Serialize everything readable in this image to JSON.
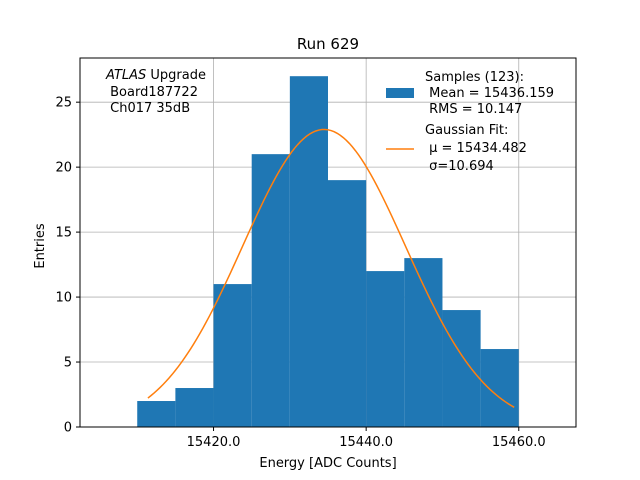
{
  "chart_data": {
    "type": "bar",
    "subtype": "histogram",
    "title": "Run 629",
    "xlabel": "Energy [ADC Counts]",
    "ylabel": "Entries",
    "xlim": [
      15402.5,
      15467.5
    ],
    "ylim": [
      0,
      28.4
    ],
    "xticks": [
      15420.0,
      15440.0,
      15460.0
    ],
    "xtick_labels": [
      "15420.0",
      "15440.0",
      "15460.0"
    ],
    "yticks": [
      0,
      5,
      10,
      15,
      20,
      25
    ],
    "ytick_labels": [
      "0",
      "5",
      "10",
      "15",
      "20",
      "25"
    ],
    "grid": true,
    "bins": [
      {
        "x0": 15410,
        "x1": 15415,
        "value": 2
      },
      {
        "x0": 15415,
        "x1": 15420,
        "value": 3
      },
      {
        "x0": 15420,
        "x1": 15425,
        "value": 11
      },
      {
        "x0": 15425,
        "x1": 15430,
        "value": 21
      },
      {
        "x0": 15430,
        "x1": 15435,
        "value": 27
      },
      {
        "x0": 15435,
        "x1": 15440,
        "value": 19
      },
      {
        "x0": 15440,
        "x1": 15445,
        "value": 12
      },
      {
        "x0": 15445,
        "x1": 15450,
        "value": 13
      },
      {
        "x0": 15450,
        "x1": 15455,
        "value": 9
      },
      {
        "x0": 15455,
        "x1": 15460,
        "value": 6
      }
    ],
    "fit": {
      "type": "gaussian",
      "mu": 15434.482,
      "sigma": 10.694,
      "amplitude": 22.9,
      "x_range": [
        15411.4,
        15459.4
      ]
    },
    "annotation": {
      "lines": [
        {
          "italic": "ATLAS",
          "text": " Upgrade"
        },
        {
          "italic": "",
          "text": " Board187722"
        },
        {
          "italic": "",
          "text": " Ch017 35dB"
        }
      ]
    },
    "legend": {
      "placement": "top-right",
      "entries": [
        {
          "kind": "patch",
          "lines": [
            "Samples (123):",
            " Mean = 15436.159",
            " RMS = 10.147"
          ]
        },
        {
          "kind": "line",
          "lines": [
            "Gaussian Fit:",
            " μ = 15434.482",
            " σ=10.694"
          ]
        }
      ]
    },
    "colors": {
      "bars": "#1f77b4",
      "fit_line": "#ff7f0e",
      "grid": "#b0b0b0",
      "axes": "#000000"
    }
  }
}
